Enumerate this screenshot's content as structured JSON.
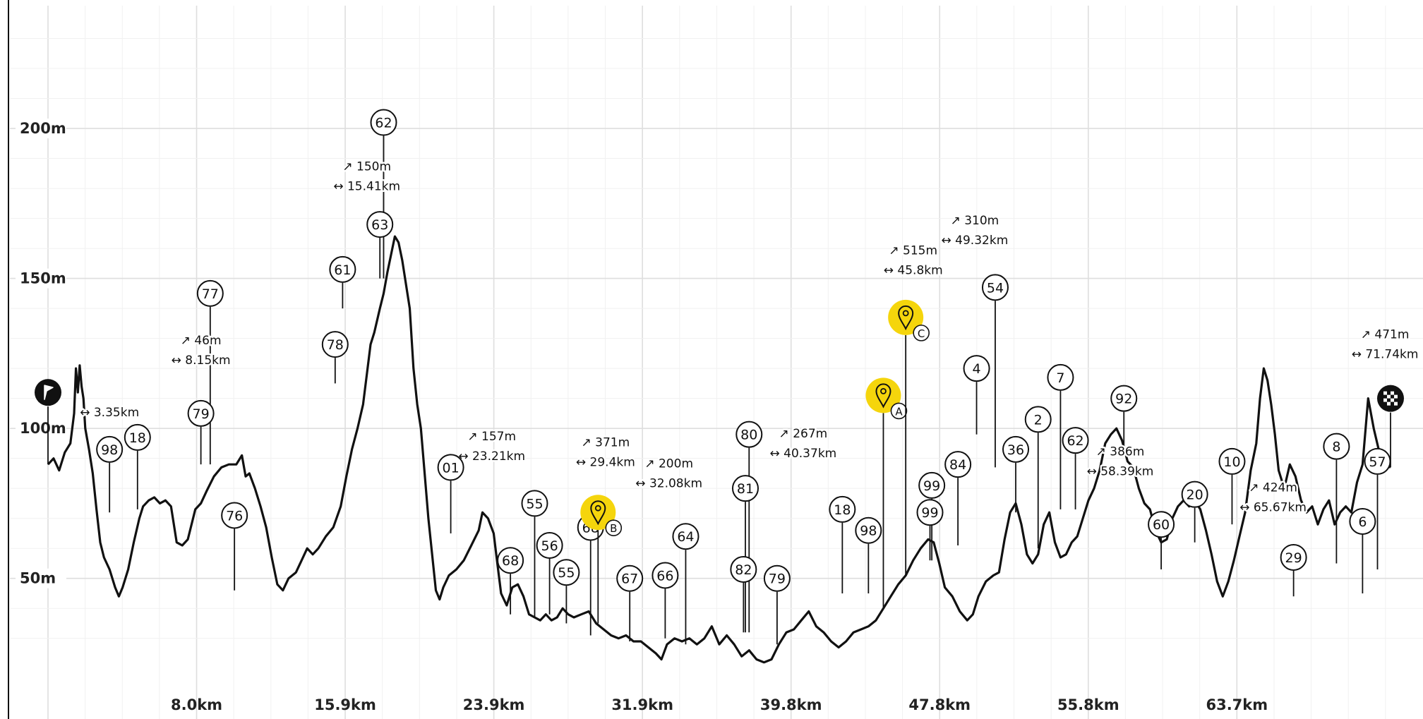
{
  "chart_data": {
    "type": "line",
    "xlim": [
      0,
      72
    ],
    "ylim": [
      17,
      240
    ],
    "y_ticks": [
      {
        "value": 50,
        "label": "50m"
      },
      {
        "value": 100,
        "label": "100m"
      },
      {
        "value": 150,
        "label": "150m"
      },
      {
        "value": 200,
        "label": "200m"
      }
    ],
    "x_ticks": [
      {
        "value": 7.97,
        "label": "8.0km"
      },
      {
        "value": 15.94,
        "label": "15.9km"
      },
      {
        "value": 23.91,
        "label": "23.9km"
      },
      {
        "value": 31.88,
        "label": "31.9km"
      },
      {
        "value": 39.85,
        "label": "39.8km"
      },
      {
        "value": 47.82,
        "label": "47.8km"
      },
      {
        "value": 55.79,
        "label": "55.8km"
      },
      {
        "value": 63.76,
        "label": "63.7km"
      }
    ],
    "grid": true,
    "profile": [
      [
        0,
        88
      ],
      [
        0.3,
        90
      ],
      [
        0.6,
        86
      ],
      [
        0.9,
        92
      ],
      [
        1.2,
        95
      ],
      [
        1.4,
        105
      ],
      [
        1.5,
        120
      ],
      [
        1.6,
        112
      ],
      [
        1.7,
        121
      ],
      [
        1.8,
        114
      ],
      [
        1.9,
        110
      ],
      [
        2.0,
        100
      ],
      [
        2.2,
        93
      ],
      [
        2.4,
        85
      ],
      [
        2.6,
        73
      ],
      [
        2.8,
        62
      ],
      [
        3.0,
        57
      ],
      [
        3.3,
        53
      ],
      [
        3.6,
        47
      ],
      [
        3.8,
        44
      ],
      [
        4.0,
        47
      ],
      [
        4.3,
        53
      ],
      [
        4.6,
        62
      ],
      [
        4.9,
        70
      ],
      [
        5.1,
        74
      ],
      [
        5.4,
        76
      ],
      [
        5.7,
        77
      ],
      [
        6.0,
        75
      ],
      [
        6.3,
        76
      ],
      [
        6.6,
        74
      ],
      [
        6.9,
        62
      ],
      [
        7.2,
        61
      ],
      [
        7.5,
        63
      ],
      [
        7.9,
        73
      ],
      [
        8.2,
        75
      ],
      [
        8.5,
        79
      ],
      [
        8.9,
        84
      ],
      [
        9.3,
        87
      ],
      [
        9.7,
        88
      ],
      [
        10.1,
        88
      ],
      [
        10.4,
        91
      ],
      [
        10.6,
        84
      ],
      [
        10.8,
        85
      ],
      [
        11.1,
        80
      ],
      [
        11.4,
        74
      ],
      [
        11.7,
        67
      ],
      [
        12.0,
        57
      ],
      [
        12.3,
        48
      ],
      [
        12.6,
        46
      ],
      [
        12.9,
        50
      ],
      [
        13.3,
        52
      ],
      [
        13.6,
        56
      ],
      [
        13.9,
        60
      ],
      [
        14.2,
        58
      ],
      [
        14.5,
        60
      ],
      [
        14.9,
        64
      ],
      [
        15.3,
        67
      ],
      [
        15.7,
        74
      ],
      [
        16.0,
        84
      ],
      [
        16.3,
        93
      ],
      [
        16.6,
        100
      ],
      [
        16.9,
        108
      ],
      [
        17.1,
        118
      ],
      [
        17.3,
        128
      ],
      [
        17.5,
        132
      ],
      [
        17.8,
        140
      ],
      [
        18.0,
        145
      ],
      [
        18.2,
        152
      ],
      [
        18.4,
        158
      ],
      [
        18.6,
        164
      ],
      [
        18.8,
        162
      ],
      [
        19.0,
        156
      ],
      [
        19.2,
        148
      ],
      [
        19.4,
        140
      ],
      [
        19.6,
        120
      ],
      [
        19.8,
        108
      ],
      [
        20.0,
        100
      ],
      [
        20.2,
        85
      ],
      [
        20.4,
        70
      ],
      [
        20.6,
        58
      ],
      [
        20.8,
        46
      ],
      [
        21.0,
        43
      ],
      [
        21.2,
        47
      ],
      [
        21.5,
        51
      ],
      [
        21.9,
        53
      ],
      [
        22.3,
        56
      ],
      [
        22.7,
        61
      ],
      [
        23.1,
        66
      ],
      [
        23.3,
        72
      ],
      [
        23.6,
        70
      ],
      [
        23.9,
        65
      ],
      [
        24.1,
        55
      ],
      [
        24.3,
        45
      ],
      [
        24.6,
        41
      ],
      [
        24.9,
        47
      ],
      [
        25.2,
        48
      ],
      [
        25.5,
        44
      ],
      [
        25.8,
        38
      ],
      [
        26.1,
        37
      ],
      [
        26.4,
        36
      ],
      [
        26.7,
        38
      ],
      [
        27.0,
        36
      ],
      [
        27.3,
        37
      ],
      [
        27.6,
        40
      ],
      [
        27.9,
        38
      ],
      [
        28.2,
        37
      ],
      [
        28.6,
        38
      ],
      [
        29.0,
        39
      ],
      [
        29.4,
        35
      ],
      [
        29.8,
        33
      ],
      [
        30.2,
        31
      ],
      [
        30.6,
        30
      ],
      [
        31.0,
        31
      ],
      [
        31.4,
        29
      ],
      [
        31.8,
        29
      ],
      [
        32.2,
        27
      ],
      [
        32.6,
        25
      ],
      [
        32.9,
        23
      ],
      [
        33.2,
        28
      ],
      [
        33.6,
        30
      ],
      [
        34.0,
        29
      ],
      [
        34.4,
        30
      ],
      [
        34.8,
        28
      ],
      [
        35.2,
        30
      ],
      [
        35.6,
        34
      ],
      [
        36.0,
        28
      ],
      [
        36.4,
        31
      ],
      [
        36.8,
        28
      ],
      [
        37.2,
        24
      ],
      [
        37.6,
        26
      ],
      [
        38.0,
        23
      ],
      [
        38.4,
        22
      ],
      [
        38.8,
        23
      ],
      [
        39.2,
        28
      ],
      [
        39.6,
        32
      ],
      [
        40.0,
        33
      ],
      [
        40.4,
        36
      ],
      [
        40.8,
        39
      ],
      [
        41.2,
        34
      ],
      [
        41.6,
        32
      ],
      [
        42.0,
        29
      ],
      [
        42.4,
        27
      ],
      [
        42.8,
        29
      ],
      [
        43.2,
        32
      ],
      [
        43.6,
        33
      ],
      [
        44.0,
        34
      ],
      [
        44.4,
        36
      ],
      [
        44.8,
        40
      ],
      [
        45.2,
        44
      ],
      [
        45.6,
        48
      ],
      [
        46.0,
        51
      ],
      [
        46.4,
        56
      ],
      [
        46.8,
        60
      ],
      [
        47.2,
        63
      ],
      [
        47.5,
        62
      ],
      [
        47.8,
        55
      ],
      [
        48.1,
        47
      ],
      [
        48.5,
        44
      ],
      [
        48.9,
        39
      ],
      [
        49.3,
        36
      ],
      [
        49.6,
        38
      ],
      [
        49.9,
        44
      ],
      [
        50.3,
        49
      ],
      [
        50.7,
        51
      ],
      [
        51.0,
        52
      ],
      [
        51.3,
        63
      ],
      [
        51.6,
        72
      ],
      [
        51.9,
        75
      ],
      [
        52.2,
        68
      ],
      [
        52.5,
        58
      ],
      [
        52.8,
        55
      ],
      [
        53.1,
        58
      ],
      [
        53.4,
        68
      ],
      [
        53.7,
        72
      ],
      [
        54.0,
        62
      ],
      [
        54.3,
        57
      ],
      [
        54.6,
        58
      ],
      [
        54.9,
        62
      ],
      [
        55.2,
        64
      ],
      [
        55.5,
        70
      ],
      [
        55.8,
        76
      ],
      [
        56.1,
        80
      ],
      [
        56.4,
        86
      ],
      [
        56.7,
        95
      ],
      [
        57.0,
        98
      ],
      [
        57.3,
        100
      ],
      [
        57.6,
        96
      ],
      [
        57.9,
        89
      ],
      [
        58.2,
        87
      ],
      [
        58.5,
        80
      ],
      [
        58.8,
        75
      ],
      [
        59.1,
        73
      ],
      [
        59.4,
        66
      ],
      [
        59.7,
        62
      ],
      [
        60.0,
        63
      ],
      [
        60.3,
        70
      ],
      [
        60.6,
        74
      ],
      [
        60.9,
        76
      ],
      [
        61.2,
        74
      ],
      [
        61.5,
        76
      ],
      [
        61.8,
        73
      ],
      [
        62.1,
        66
      ],
      [
        62.4,
        58
      ],
      [
        62.7,
        49
      ],
      [
        63.0,
        44
      ],
      [
        63.3,
        49
      ],
      [
        63.6,
        56
      ],
      [
        63.9,
        64
      ],
      [
        64.2,
        72
      ],
      [
        64.5,
        86
      ],
      [
        64.8,
        95
      ],
      [
        65.0,
        110
      ],
      [
        65.2,
        120
      ],
      [
        65.4,
        116
      ],
      [
        65.6,
        108
      ],
      [
        65.8,
        98
      ],
      [
        66.0,
        86
      ],
      [
        66.3,
        80
      ],
      [
        66.6,
        88
      ],
      [
        66.9,
        84
      ],
      [
        67.2,
        76
      ],
      [
        67.5,
        72
      ],
      [
        67.8,
        74
      ],
      [
        68.1,
        68
      ],
      [
        68.4,
        73
      ],
      [
        68.7,
        76
      ],
      [
        69.0,
        68
      ],
      [
        69.3,
        72
      ],
      [
        69.6,
        74
      ],
      [
        69.9,
        72
      ],
      [
        70.2,
        82
      ],
      [
        70.5,
        88
      ],
      [
        70.8,
        110
      ],
      [
        71.1,
        100
      ],
      [
        71.4,
        92
      ],
      [
        71.7,
        88
      ],
      [
        72.0,
        87
      ]
    ],
    "start_km": 0,
    "finish_km": 72,
    "waypoints": [
      {
        "id": "A",
        "km": 44.8,
        "alt": 111
      },
      {
        "id": "B",
        "km": 29.5,
        "alt": 72
      },
      {
        "id": "C",
        "km": 46.0,
        "alt": 137
      }
    ],
    "markers": [
      {
        "label": "98",
        "km": 3.3,
        "alt": 93,
        "line": 72
      },
      {
        "label": "18",
        "km": 4.8,
        "alt": 97,
        "line": 73
      },
      {
        "label": "79",
        "km": 8.2,
        "alt": 105,
        "line": 88
      },
      {
        "label": "77",
        "km": 8.7,
        "alt": 145,
        "line": 88
      },
      {
        "label": "76",
        "km": 10.0,
        "alt": 71,
        "line": 46
      },
      {
        "label": "78",
        "km": 15.4,
        "alt": 128,
        "line": 115
      },
      {
        "label": "61",
        "km": 15.8,
        "alt": 153,
        "line": 140
      },
      {
        "label": "62",
        "km": 18.0,
        "alt": 202,
        "line": 150
      },
      {
        "label": "63",
        "km": 17.8,
        "alt": 168,
        "line": 150
      },
      {
        "label": "01",
        "km": 21.6,
        "alt": 87,
        "line": 65
      },
      {
        "label": "68",
        "km": 24.8,
        "alt": 56,
        "line": 38
      },
      {
        "label": "55",
        "km": 26.1,
        "alt": 75,
        "line": 37
      },
      {
        "label": "56",
        "km": 26.9,
        "alt": 61,
        "line": 38
      },
      {
        "label": "55",
        "km": 27.8,
        "alt": 52,
        "line": 35
      },
      {
        "label": "68",
        "km": 29.1,
        "alt": 67,
        "line": 31
      },
      {
        "label": "67",
        "km": 31.2,
        "alt": 50,
        "line": 29
      },
      {
        "label": "66",
        "km": 33.1,
        "alt": 51,
        "line": 30
      },
      {
        "label": "64",
        "km": 34.2,
        "alt": 64,
        "line": 28
      },
      {
        "label": "82",
        "km": 37.3,
        "alt": 53,
        "line": 32
      },
      {
        "label": "81",
        "km": 37.4,
        "alt": 80,
        "line": 32
      },
      {
        "label": "80",
        "km": 37.6,
        "alt": 98,
        "line": 32
      },
      {
        "label": "79",
        "km": 39.1,
        "alt": 50,
        "line": 28
      },
      {
        "label": "18",
        "km": 42.6,
        "alt": 73,
        "line": 45
      },
      {
        "label": "98",
        "km": 44.0,
        "alt": 66,
        "line": 45
      },
      {
        "label": "99",
        "km": 47.3,
        "alt": 72,
        "line": 56
      },
      {
        "label": "99",
        "km": 47.4,
        "alt": 81,
        "line": 56
      },
      {
        "label": "84",
        "km": 48.8,
        "alt": 88,
        "line": 61
      },
      {
        "label": "4",
        "km": 49.8,
        "alt": 120,
        "line": 98
      },
      {
        "label": "54",
        "km": 50.8,
        "alt": 147,
        "line": 87
      },
      {
        "label": "36",
        "km": 51.9,
        "alt": 93,
        "line": 72
      },
      {
        "label": "2",
        "km": 53.1,
        "alt": 103,
        "line": 60
      },
      {
        "label": "7",
        "km": 54.3,
        "alt": 117,
        "line": 73
      },
      {
        "label": "62",
        "km": 55.1,
        "alt": 96,
        "line": 73
      },
      {
        "label": "92",
        "km": 57.7,
        "alt": 110,
        "line": 93
      },
      {
        "label": "60",
        "km": 59.7,
        "alt": 68,
        "line": 53
      },
      {
        "label": "20",
        "km": 61.5,
        "alt": 78,
        "line": 62
      },
      {
        "label": "10",
        "km": 63.5,
        "alt": 89,
        "line": 68
      },
      {
        "label": "29",
        "km": 66.8,
        "alt": 57,
        "line": 44
      },
      {
        "label": "8",
        "km": 69.1,
        "alt": 94,
        "line": 55
      },
      {
        "label": "6",
        "km": 70.5,
        "alt": 69,
        "line": 45
      },
      {
        "label": "57",
        "km": 71.3,
        "alt": 89,
        "line": 53
      }
    ],
    "annotations": [
      {
        "km": 3.3,
        "alt": 104,
        "lines": [
          "↔ 3.35km"
        ]
      },
      {
        "km": 8.2,
        "alt": 128,
        "lines": [
          "↗ 46m",
          "↔ 8.15km"
        ]
      },
      {
        "km": 17.1,
        "alt": 186,
        "lines": [
          "↗ 150m",
          "↔ 15.41km"
        ]
      },
      {
        "km": 23.8,
        "alt": 96,
        "lines": [
          "↗ 157m",
          "↔ 23.21km"
        ]
      },
      {
        "km": 29.9,
        "alt": 94,
        "lines": [
          "↗ 371m",
          "↔ 29.4km"
        ]
      },
      {
        "km": 33.3,
        "alt": 87,
        "lines": [
          "↗ 200m",
          "↔ 32.08km"
        ]
      },
      {
        "km": 40.5,
        "alt": 97,
        "lines": [
          "↗ 267m",
          "↔ 40.37km"
        ]
      },
      {
        "km": 46.4,
        "alt": 158,
        "lines": [
          "↗ 515m",
          "↔ 45.8km"
        ]
      },
      {
        "km": 49.7,
        "alt": 168,
        "lines": [
          "↗ 310m",
          "↔ 49.32km"
        ]
      },
      {
        "km": 57.5,
        "alt": 91,
        "lines": [
          "↗ 386m",
          "↔ 58.39km"
        ]
      },
      {
        "km": 65.7,
        "alt": 79,
        "lines": [
          "↗ 424m",
          "↔ 65.67km"
        ]
      },
      {
        "km": 71.7,
        "alt": 130,
        "lines": [
          "↗ 471m",
          "↔ 71.74km"
        ]
      }
    ]
  }
}
